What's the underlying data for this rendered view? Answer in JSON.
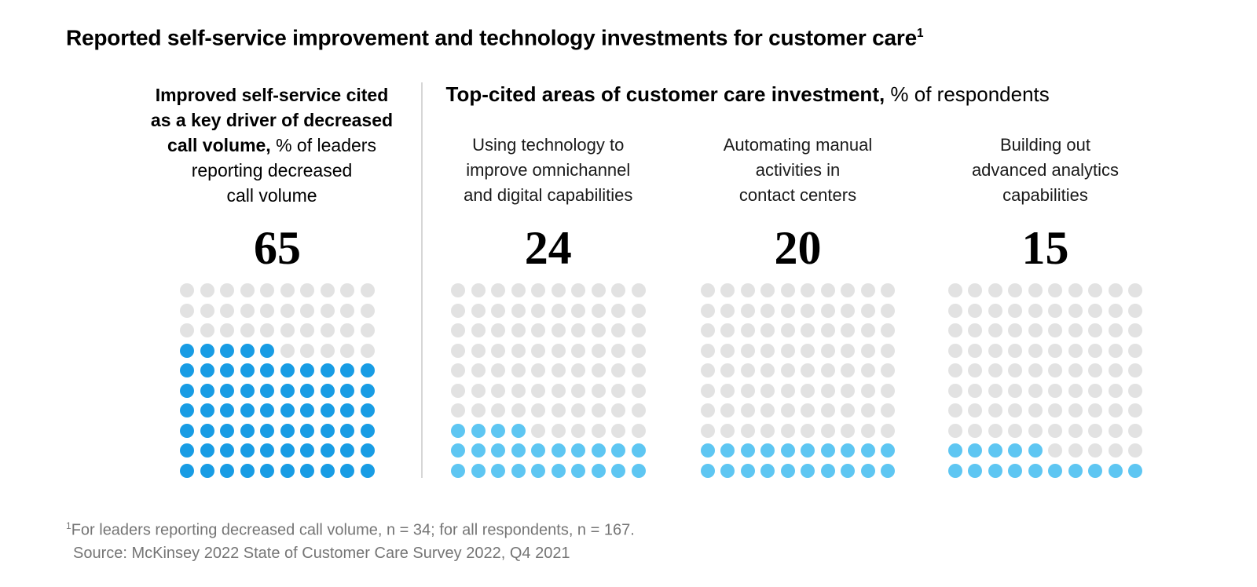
{
  "title": {
    "text": "Reported self-service improvement and technology investments for customer care",
    "superscript": "1"
  },
  "left_panel": {
    "heading_lines": [
      {
        "bold": "Improved self-service cited",
        "regular": ""
      },
      {
        "bold": "as a key driver of decreased",
        "regular": ""
      },
      {
        "bold": "call volume,",
        "regular": " % of leaders"
      },
      {
        "bold": "",
        "regular": "reporting decreased"
      },
      {
        "bold": "",
        "regular": "call volume"
      }
    ],
    "value": "65"
  },
  "right_panel": {
    "heading_bold": "Top-cited areas of customer care investment,",
    "heading_regular": " % of respondents",
    "columns": [
      {
        "label_lines": [
          "Using technology to",
          "improve omnichannel",
          "and digital capabilities"
        ],
        "value": "24"
      },
      {
        "label_lines": [
          "Automating manual",
          "activities in",
          "contact centers"
        ],
        "value": "20"
      },
      {
        "label_lines": [
          "Building out",
          "advanced analytics",
          "capabilities"
        ],
        "value": "15"
      }
    ]
  },
  "footnote": {
    "superscript": "1",
    "line1": "For leaders reporting decreased call volume, n = 34; for all respondents, n = 167.",
    "line2": "Source: McKinsey 2022 State of Customer Care Survey 2022, Q4 2021"
  },
  "chart_data": {
    "type": "waffle",
    "title": "Reported self-service improvement and technology investments for customer care",
    "unit": "1 dot = 1 percentage point, 10x10 grid per category",
    "grid": {
      "rows": 10,
      "cols": 10,
      "fill_origin": "bottom-left"
    },
    "empty_color": "#E2E2E2",
    "series": [
      {
        "name": "Improved self-service cited as a key driver of decreased call volume (% of leaders reporting decreased call volume)",
        "value": 65,
        "fill_color": "#189CE4"
      },
      {
        "name": "Using technology to improve omnichannel and digital capabilities (% of respondents)",
        "value": 24,
        "fill_color": "#5EC6F2"
      },
      {
        "name": "Automating manual activities in contact centers (% of respondents)",
        "value": 20,
        "fill_color": "#5EC6F2"
      },
      {
        "name": "Building out advanced analytics capabilities (% of respondents)",
        "value": 15,
        "fill_color": "#5EC6F2"
      }
    ]
  },
  "colors": {
    "divider": "#D6D6D6",
    "empty_dot": "#E2E2E2",
    "dark_blue": "#189CE4",
    "light_blue": "#5EC6F2",
    "footnote_text": "#757575"
  }
}
